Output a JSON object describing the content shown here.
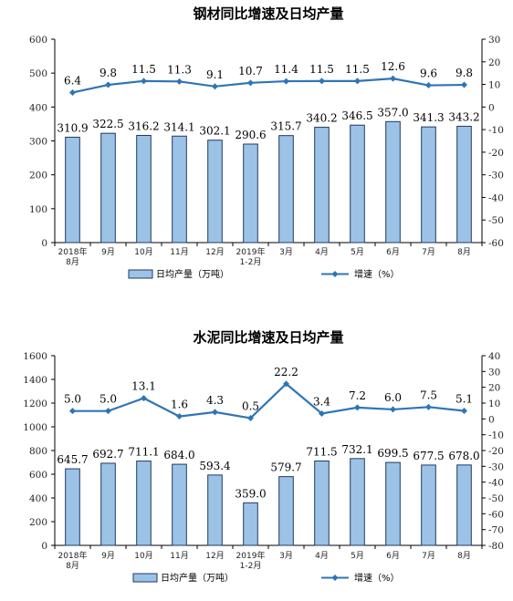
{
  "chart_data": [
    {
      "type": "bar",
      "title": "钢材同比增速及日均产量",
      "categories": [
        [
          "2018年",
          "8月"
        ],
        [
          "9月"
        ],
        [
          "10月"
        ],
        [
          "11月"
        ],
        [
          "12月"
        ],
        [
          "2019年",
          "1-2月"
        ],
        [
          "3月"
        ],
        [
          "4月"
        ],
        [
          "5月"
        ],
        [
          "6月"
        ],
        [
          "7月"
        ],
        [
          "8月"
        ]
      ],
      "series": [
        {
          "name": "日均产量（万吨）",
          "type": "bar",
          "axis": "left",
          "values": [
            310.9,
            322.5,
            316.2,
            314.1,
            302.1,
            290.6,
            315.7,
            340.2,
            346.5,
            357.0,
            341.3,
            343.2
          ],
          "labels": [
            "310.9",
            "322.5",
            "316.2",
            "314.1",
            "302.1",
            "290.6",
            "315.7",
            "340.2",
            "346.5",
            "357.0",
            "341.3",
            "343.2"
          ]
        },
        {
          "name": "增速（%）",
          "type": "line",
          "axis": "right",
          "values": [
            6.4,
            9.8,
            11.5,
            11.3,
            9.1,
            10.7,
            11.4,
            11.5,
            11.5,
            12.6,
            9.6,
            9.8
          ],
          "labels": [
            "6.4",
            "9.8",
            "11.5",
            "11.3",
            "9.1",
            "10.7",
            "11.4",
            "11.5",
            "11.5",
            "12.6",
            "9.6",
            "9.8"
          ]
        }
      ],
      "left_axis": {
        "ylim": [
          0,
          600
        ],
        "ticks": [
          0,
          100,
          200,
          300,
          400,
          500,
          600
        ]
      },
      "right_axis": {
        "ylim": [
          -60,
          30
        ],
        "ticks": [
          -60,
          -50,
          -40,
          -30,
          -20,
          -10,
          0,
          10,
          20,
          30
        ]
      },
      "legend_position": "bottom",
      "colors": {
        "bar_fill": "#9cc3e6",
        "bar_stroke": "#1f3864",
        "line": "#2e75b6"
      }
    },
    {
      "type": "bar",
      "title": "水泥同比增速及日均产量",
      "categories": [
        [
          "2018年",
          "8月"
        ],
        [
          "9月"
        ],
        [
          "10月"
        ],
        [
          "11月"
        ],
        [
          "12月"
        ],
        [
          "2019年",
          "1-2月"
        ],
        [
          "3月"
        ],
        [
          "4月"
        ],
        [
          "5月"
        ],
        [
          "6月"
        ],
        [
          "7月"
        ],
        [
          "8月"
        ]
      ],
      "series": [
        {
          "name": "日均产量（万吨）",
          "type": "bar",
          "axis": "left",
          "values": [
            645.7,
            692.7,
            711.1,
            684.0,
            593.4,
            359.0,
            579.7,
            711.5,
            732.1,
            699.5,
            677.5,
            678.0
          ],
          "labels": [
            "645.7",
            "692.7",
            "711.1",
            "684.0",
            "593.4",
            "359.0",
            "579.7",
            "711.5",
            "732.1",
            "699.5",
            "677.5",
            "678.0"
          ]
        },
        {
          "name": "增速（%）",
          "type": "line",
          "axis": "right",
          "values": [
            5.0,
            5.0,
            13.1,
            1.6,
            4.3,
            0.5,
            22.2,
            3.4,
            7.2,
            6.0,
            7.5,
            5.1
          ],
          "labels": [
            "5.0",
            "5.0",
            "13.1",
            "1.6",
            "4.3",
            "0.5",
            "22.2",
            "3.4",
            "7.2",
            "6.0",
            "7.5",
            "5.1"
          ]
        }
      ],
      "left_axis": {
        "ylim": [
          0,
          1600
        ],
        "ticks": [
          0,
          200,
          400,
          600,
          800,
          1000,
          1200,
          1400,
          1600
        ]
      },
      "right_axis": {
        "ylim": [
          -80,
          40
        ],
        "ticks": [
          -80,
          -70,
          -60,
          -50,
          -40,
          -30,
          -20,
          -10,
          0,
          10,
          20,
          30,
          40
        ]
      },
      "legend_position": "bottom",
      "colors": {
        "bar_fill": "#9cc3e6",
        "bar_stroke": "#1f3864",
        "line": "#2e75b6"
      }
    }
  ]
}
